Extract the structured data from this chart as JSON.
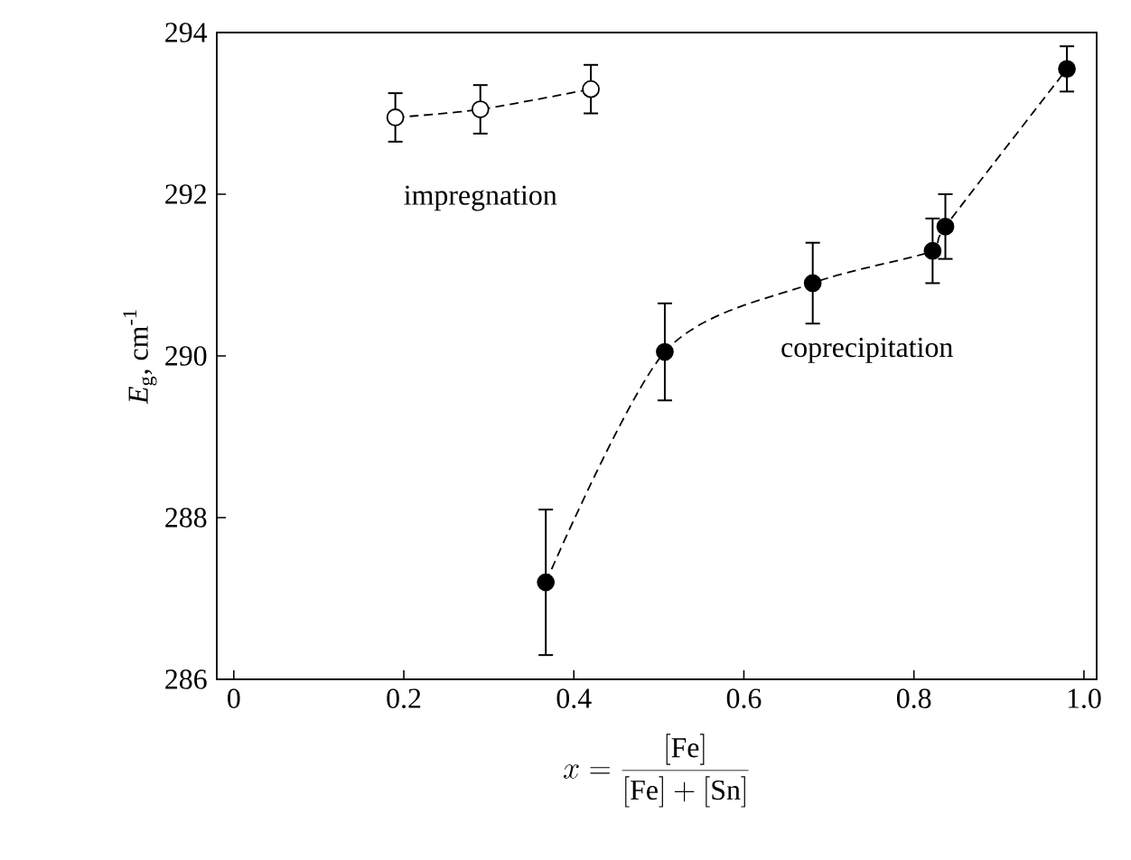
{
  "chart_data": {
    "type": "line",
    "xlabel": "x = \\frac{[\\mathrm{Fe}]}{[\\mathrm{Fe}] + [\\mathrm{Sn}]}",
    "ylabel": "*E*$_{g}$, cm$^{-1}$",
    "xlim": [
      -0.02,
      1.015
    ],
    "ylim": [
      286,
      294
    ],
    "xticks": [
      0,
      0.2,
      0.4,
      0.6,
      0.8,
      {
        "value": 1.0,
        "label": "1.0"
      }
    ],
    "yticks": [
      286,
      288,
      290,
      292,
      294
    ],
    "marker": "circle",
    "line_style": "dashed",
    "grid": false,
    "series": [
      {
        "name": "impregnation",
        "color": "#000000",
        "x": [
          0.19,
          0.29,
          0.42
        ],
        "values": [
          292.95,
          293.05,
          293.3
        ],
        "errors": [
          0.3,
          0.3,
          0.3
        ]
      },
      {
        "name": "coprecipitation",
        "color": "#000000",
        "x": [
          0.367,
          0.507,
          0.681,
          0.822,
          0.837,
          0.98
        ],
        "values": [
          287.2,
          290.05,
          290.9,
          291.3,
          291.6,
          293.55
        ],
        "errors": [
          0.9,
          0.6,
          0.5,
          0.4,
          0.4,
          0.28
        ]
      }
    ]
  }
}
